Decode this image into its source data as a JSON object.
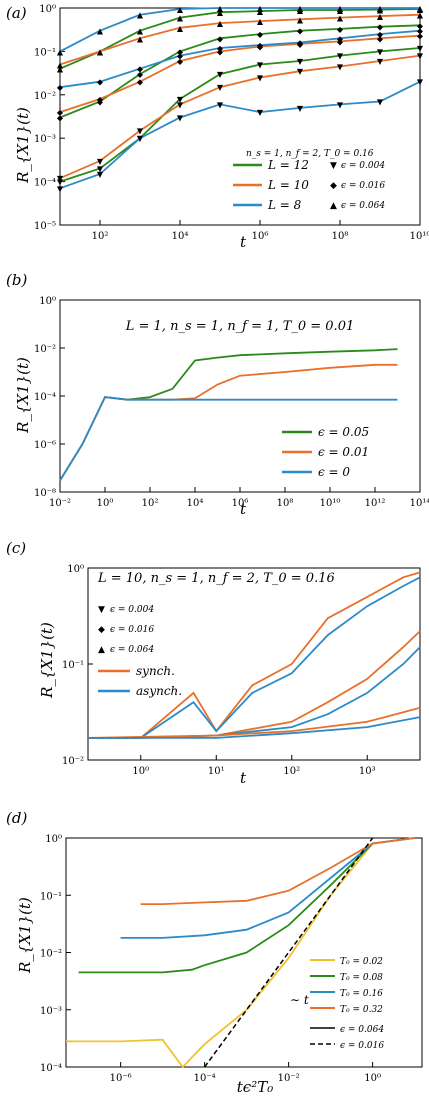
{
  "chart_data": [
    {
      "panel": "(a)",
      "type": "line",
      "xscale": "log",
      "yscale": "log",
      "xlim": [
        10,
        10000000000.0
      ],
      "ylim": [
        1e-05,
        1
      ],
      "xticks": [
        100,
        10000,
        1000000.0,
        100000000.0,
        10000000000.0
      ],
      "xtick_labels": [
        "10^2",
        "10^4",
        "10^6",
        "10^8",
        "10^10"
      ],
      "yticks": [
        1e-05,
        0.0001,
        0.001,
        0.01,
        0.1,
        1
      ],
      "ytick_labels": [
        "10^-5",
        "10^-4",
        "10^-3",
        "10^-2",
        "10^-1",
        "10^0"
      ],
      "xlabel": "t",
      "ylabel": "R_{X1}(t)",
      "title": "n_s = 1, n_f = 2, T_0 = 0.16",
      "legend_position": "lower-right",
      "legend_colors": [
        {
          "name": "L = 12",
          "color": "#2a8a1a"
        },
        {
          "name": "L = 10",
          "color": "#e8702a"
        },
        {
          "name": "L = 8",
          "color": "#2a8bc8"
        }
      ],
      "legend_markers": [
        {
          "name": "ϵ = 0.004",
          "marker": "▼"
        },
        {
          "name": "ϵ = 0.016",
          "marker": "◆"
        },
        {
          "name": "ϵ = 0.064",
          "marker": "▲"
        }
      ],
      "series": [
        {
          "color": "#2a8a1a",
          "marker": "▲",
          "x": [
            10,
            100,
            1000,
            10000,
            100000,
            1000000.0,
            10000000.0,
            100000000.0,
            1000000000.0,
            10000000000.0
          ],
          "y": [
            0.04,
            0.1,
            0.3,
            0.6,
            0.8,
            0.85,
            0.9,
            0.9,
            0.92,
            0.95
          ]
        },
        {
          "color": "#2a8a1a",
          "marker": "◆",
          "x": [
            10,
            100,
            1000,
            10000,
            100000,
            1000000.0,
            10000000.0,
            100000000.0,
            1000000000.0,
            10000000000.0
          ],
          "y": [
            0.003,
            0.007,
            0.03,
            0.1,
            0.2,
            0.25,
            0.3,
            0.33,
            0.37,
            0.4
          ]
        },
        {
          "color": "#2a8a1a",
          "marker": "▼",
          "x": [
            10,
            100,
            1000,
            10000,
            100000,
            1000000.0,
            10000000.0,
            100000000.0,
            1000000000.0,
            10000000000.0
          ],
          "y": [
            0.0001,
            0.0002,
            0.001,
            0.008,
            0.03,
            0.05,
            0.06,
            0.08,
            0.1,
            0.12
          ]
        },
        {
          "color": "#e8702a",
          "marker": "▲",
          "x": [
            10,
            100,
            1000,
            10000,
            100000,
            1000000.0,
            10000000.0,
            100000000.0,
            1000000000.0,
            10000000000.0
          ],
          "y": [
            0.05,
            0.1,
            0.2,
            0.35,
            0.45,
            0.5,
            0.55,
            0.6,
            0.65,
            0.7
          ]
        },
        {
          "color": "#e8702a",
          "marker": "◆",
          "x": [
            10,
            100,
            1000,
            10000,
            100000,
            1000000.0,
            10000000.0,
            100000000.0,
            1000000000.0,
            10000000000.0
          ],
          "y": [
            0.004,
            0.008,
            0.02,
            0.06,
            0.1,
            0.13,
            0.15,
            0.17,
            0.2,
            0.23
          ]
        },
        {
          "color": "#e8702a",
          "marker": "▼",
          "x": [
            10,
            100,
            1000,
            10000,
            100000,
            1000000.0,
            10000000.0,
            100000000.0,
            1000000000.0,
            10000000000.0
          ],
          "y": [
            0.00012,
            0.0003,
            0.0015,
            0.006,
            0.015,
            0.025,
            0.035,
            0.045,
            0.06,
            0.08
          ]
        },
        {
          "color": "#2a8bc8",
          "marker": "▲",
          "x": [
            10,
            100,
            1000,
            10000,
            100000,
            1000000.0,
            10000000.0,
            100000000.0,
            1000000000.0,
            10000000000.0
          ],
          "y": [
            0.1,
            0.3,
            0.7,
            0.95,
            1,
            1,
            1,
            1,
            1,
            1
          ]
        },
        {
          "color": "#2a8bc8",
          "marker": "◆",
          "x": [
            10,
            100,
            1000,
            10000,
            100000,
            1000000.0,
            10000000.0,
            100000000.0,
            1000000000.0,
            10000000000.0
          ],
          "y": [
            0.015,
            0.02,
            0.04,
            0.08,
            0.12,
            0.14,
            0.16,
            0.2,
            0.25,
            0.3
          ]
        },
        {
          "color": "#2a8bc8",
          "marker": "▼",
          "x": [
            10,
            100,
            1000,
            10000,
            100000,
            1000000.0,
            10000000.0,
            100000000.0,
            1000000000.0,
            10000000000.0
          ],
          "y": [
            7e-05,
            0.00015,
            0.001,
            0.003,
            0.006,
            0.004,
            0.005,
            0.006,
            0.007,
            0.02
          ]
        }
      ]
    },
    {
      "panel": "(b)",
      "type": "line",
      "xscale": "log",
      "yscale": "log",
      "xlim": [
        0.01,
        100000000000000.0
      ],
      "ylim": [
        1e-08,
        1
      ],
      "xticks": [
        0.01,
        1,
        100,
        10000,
        1000000.0,
        100000000.0,
        10000000000.0,
        1000000000000.0,
        100000000000000.0
      ],
      "xtick_labels": [
        "10^-2",
        "10^0",
        "10^2",
        "10^4",
        "10^6",
        "10^8",
        "10^10",
        "10^12",
        "10^14"
      ],
      "yticks": [
        1e-08,
        1e-06,
        0.0001,
        0.01,
        1
      ],
      "ytick_labels": [
        "10^-8",
        "10^-6",
        "10^-4",
        "10^-2",
        "10^0"
      ],
      "xlabel": "t",
      "ylabel": "R_{X1}(t)",
      "title": "L = 1, n_s = 1, n_f = 1, T_0 = 0.01",
      "legend_position": "lower-right",
      "series": [
        {
          "name": "ϵ = 0.05",
          "color": "#2a8a1a",
          "x": [
            0.01,
            0.1,
            1,
            10,
            100,
            1000,
            10000,
            100000,
            1000000.0,
            100000000.0,
            10000000000.0,
            1000000000000.0,
            10000000000000.0
          ],
          "y": [
            3e-08,
            1e-06,
            9e-05,
            7e-05,
            9e-05,
            0.0002,
            0.003,
            0.004,
            0.005,
            0.006,
            0.007,
            0.008,
            0.009
          ]
        },
        {
          "name": "ϵ = 0.01",
          "color": "#e8702a",
          "x": [
            0.01,
            0.1,
            1,
            10,
            100,
            1000,
            10000,
            100000,
            1000000.0,
            100000000.0,
            10000000000.0,
            1000000000000.0,
            10000000000000.0
          ],
          "y": [
            3e-08,
            1e-06,
            9e-05,
            7e-05,
            7e-05,
            7e-05,
            8e-05,
            0.0003,
            0.0007,
            0.001,
            0.0015,
            0.002,
            0.002
          ]
        },
        {
          "name": "ϵ = 0",
          "color": "#2a8bc8",
          "x": [
            0.01,
            0.1,
            1,
            10,
            100,
            10000000000000.0
          ],
          "y": [
            3e-08,
            1e-06,
            9e-05,
            7e-05,
            7e-05,
            7e-05
          ]
        }
      ]
    },
    {
      "panel": "(c)",
      "type": "line",
      "xscale": "log",
      "yscale": "log",
      "xlim": [
        0.2,
        5000
      ],
      "ylim": [
        0.01,
        1
      ],
      "xticks": [
        1,
        10,
        100,
        1000
      ],
      "xtick_labels": [
        "10^0",
        "10^1",
        "10^2",
        "10^3"
      ],
      "yticks": [
        0.01,
        0.1,
        1
      ],
      "ytick_labels": [
        "10^-2",
        "10^-1",
        "10^0"
      ],
      "xlabel": "t",
      "ylabel": "R_{X1}(t)",
      "title": "L = 10, n_s = 1, n_f = 2, T_0 = 0.16",
      "legend_position": "left",
      "legend_markers": [
        {
          "name": "ϵ = 0.004",
          "marker": "▼"
        },
        {
          "name": "ϵ = 0.016",
          "marker": "◆"
        },
        {
          "name": "ϵ = 0.064",
          "marker": "▲"
        }
      ],
      "series": [
        {
          "name": "synch.",
          "color": "#e8702a",
          "x": [
            0.2,
            1,
            5,
            10,
            30,
            100,
            300,
            1000,
            3000,
            5000
          ],
          "y": [
            0.017,
            0.017,
            0.05,
            0.02,
            0.06,
            0.1,
            0.3,
            0.5,
            0.8,
            0.9
          ]
        },
        {
          "name": "asynch.",
          "color": "#2a8bc8",
          "x": [
            0.2,
            1,
            5,
            10,
            30,
            100,
            300,
            1000,
            3000,
            5000
          ],
          "y": [
            0.017,
            0.017,
            0.04,
            0.02,
            0.05,
            0.08,
            0.2,
            0.4,
            0.65,
            0.8
          ]
        },
        {
          "color": "#e8702a",
          "x": [
            0.2,
            1,
            10,
            100,
            300,
            1000,
            3000,
            5000
          ],
          "y": [
            0.017,
            0.017,
            0.018,
            0.025,
            0.04,
            0.07,
            0.15,
            0.22
          ]
        },
        {
          "color": "#2a8bc8",
          "x": [
            0.2,
            1,
            10,
            100,
            300,
            1000,
            3000,
            5000
          ],
          "y": [
            0.017,
            0.017,
            0.018,
            0.022,
            0.03,
            0.05,
            0.1,
            0.15
          ]
        },
        {
          "color": "#e8702a",
          "x": [
            0.2,
            10,
            100,
            1000,
            5000
          ],
          "y": [
            0.017,
            0.018,
            0.02,
            0.025,
            0.035
          ]
        },
        {
          "color": "#2a8bc8",
          "x": [
            0.2,
            10,
            100,
            1000,
            5000
          ],
          "y": [
            0.017,
            0.017,
            0.019,
            0.022,
            0.028
          ]
        }
      ]
    },
    {
      "panel": "(d)",
      "type": "line",
      "xscale": "log",
      "yscale": "log",
      "xlim": [
        5e-08,
        15
      ],
      "ylim": [
        0.0001,
        1
      ],
      "xticks": [
        1e-06,
        0.0001,
        0.01,
        1
      ],
      "xtick_labels": [
        "10^-6",
        "10^-4",
        "10^-2",
        "10^0"
      ],
      "yticks": [
        0.0001,
        0.001,
        0.01,
        0.1,
        1
      ],
      "ytick_labels": [
        "10^-4",
        "10^-3",
        "10^-2",
        "10^-1",
        "10^0"
      ],
      "xlabel": "tϵ^2 T_0",
      "ylabel": "R_{X1}(t)",
      "annotation": "∼ t",
      "legend_position": "lower-right",
      "legend_styles": [
        {
          "name": "ϵ = 0.064",
          "style": "solid"
        },
        {
          "name": "ϵ = 0.016",
          "style": "dashed"
        }
      ],
      "series": [
        {
          "name": "T_0 = 0.02",
          "color": "#f2c12e",
          "x": [
            5e-08,
            1e-06,
            1e-05,
            3e-05,
            0.0001,
            0.001,
            0.01,
            0.1,
            1,
            10
          ],
          "y": [
            0.00028,
            0.00028,
            0.0003,
            0.0001,
            0.00025,
            0.001,
            0.008,
            0.1,
            0.8,
            1
          ]
        },
        {
          "name": "T_0 = 0.08",
          "color": "#2a8a1a",
          "x": [
            1e-07,
            5e-06,
            1e-05,
            5e-05,
            0.0001,
            0.001,
            0.01,
            0.1,
            1,
            10
          ],
          "y": [
            0.0045,
            0.0045,
            0.0045,
            0.005,
            0.006,
            0.01,
            0.03,
            0.15,
            0.8,
            1
          ]
        },
        {
          "name": "T_0 = 0.16",
          "color": "#2a8bc8",
          "x": [
            1e-06,
            5e-06,
            1e-05,
            0.0001,
            0.001,
            0.01,
            0.1,
            1,
            10
          ],
          "y": [
            0.018,
            0.018,
            0.018,
            0.02,
            0.025,
            0.05,
            0.2,
            0.8,
            1
          ]
        },
        {
          "name": "T_0 = 0.32",
          "color": "#e8702a",
          "x": [
            3e-06,
            1e-05,
            0.0001,
            0.001,
            0.01,
            0.1,
            1,
            10
          ],
          "y": [
            0.07,
            0.07,
            0.075,
            0.08,
            0.12,
            0.3,
            0.8,
            1
          ]
        },
        {
          "name": "ϵ = 0.016",
          "color": "#000000",
          "style": "dashed",
          "x": [
            0.0001,
            0.001,
            0.01,
            0.1,
            1
          ],
          "y": [
            0.0001,
            0.001,
            0.01,
            0.1,
            1
          ]
        }
      ]
    }
  ],
  "labels": {
    "panel_a": "(a)",
    "panel_b": "(b)",
    "panel_c": "(c)",
    "panel_d": "(d)",
    "a_ylabel": "R_{X1}(t)",
    "a_xlabel": "t",
    "a_title": "n_s = 1, n_f = 2, T_0 = 0.16",
    "b_ylabel": "R_{X1}(t)",
    "b_xlabel": "t",
    "b_title": "L = 1, n_s = 1, n_f = 1, T_0 = 0.01",
    "c_ylabel": "R_{X1}(t)",
    "c_xlabel": "t",
    "c_title": "L = 10, n_s = 1, n_f = 2, T_0 = 0.16",
    "d_ylabel": "R_{X1}(t)",
    "d_xlabel": "tϵ²T₀",
    "d_annotation": "∼ t",
    "a_legend": [
      "L = 12",
      "L = 10",
      "L = 8"
    ],
    "a_markers": [
      "ϵ = 0.004",
      "ϵ = 0.016",
      "ϵ = 0.064"
    ],
    "b_legend": [
      "ϵ = 0.05",
      "ϵ = 0.01",
      "ϵ = 0"
    ],
    "c_markers": [
      "ϵ = 0.004",
      "ϵ = 0.016",
      "ϵ = 0.064"
    ],
    "c_legend": [
      "synch.",
      "asynch."
    ],
    "d_legend": [
      "T₀ = 0.02",
      "T₀ = 0.08",
      "T₀ = 0.16",
      "T₀ = 0.32",
      "ϵ = 0.064",
      "ϵ = 0.016"
    ]
  }
}
